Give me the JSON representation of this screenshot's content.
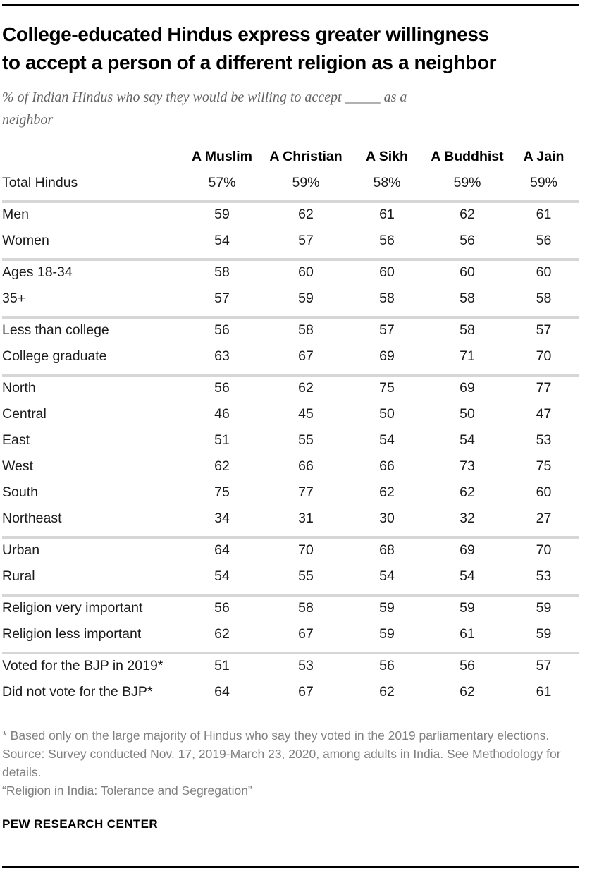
{
  "title_lines": [
    "College-educated Hindus express greater willingness",
    "to accept a person of a different religion as a neighbor"
  ],
  "subtitle_lines": [
    "% of Indian Hindus who say they would be willing to accept _____ as a",
    "neighbor"
  ],
  "table": {
    "columns": [
      "A Muslim",
      "A Christian",
      "A Sikh",
      "A Buddhist",
      "A Jain"
    ],
    "rows": [
      {
        "label": "Total Hindus",
        "values": [
          "57%",
          "59%",
          "58%",
          "59%",
          "59%"
        ],
        "divider_after": true
      },
      {
        "label": "Men",
        "values": [
          "59",
          "62",
          "61",
          "62",
          "61"
        ],
        "divider_after": false
      },
      {
        "label": "Women",
        "values": [
          "54",
          "57",
          "56",
          "56",
          "56"
        ],
        "divider_after": true
      },
      {
        "label": "Ages 18-34",
        "values": [
          "58",
          "60",
          "60",
          "60",
          "60"
        ],
        "divider_after": false
      },
      {
        "label": "35+",
        "values": [
          "57",
          "59",
          "58",
          "58",
          "58"
        ],
        "divider_after": true
      },
      {
        "label": "Less than college",
        "values": [
          "56",
          "58",
          "57",
          "58",
          "57"
        ],
        "divider_after": false
      },
      {
        "label": "College graduate",
        "values": [
          "63",
          "67",
          "69",
          "71",
          "70"
        ],
        "divider_after": true
      },
      {
        "label": "North",
        "values": [
          "56",
          "62",
          "75",
          "69",
          "77"
        ],
        "divider_after": false
      },
      {
        "label": "Central",
        "values": [
          "46",
          "45",
          "50",
          "50",
          "47"
        ],
        "divider_after": false
      },
      {
        "label": "East",
        "values": [
          "51",
          "55",
          "54",
          "54",
          "53"
        ],
        "divider_after": false
      },
      {
        "label": "West",
        "values": [
          "62",
          "66",
          "66",
          "73",
          "75"
        ],
        "divider_after": false
      },
      {
        "label": "South",
        "values": [
          "75",
          "77",
          "62",
          "62",
          "60"
        ],
        "divider_after": false
      },
      {
        "label": "Northeast",
        "values": [
          "34",
          "31",
          "30",
          "32",
          "27"
        ],
        "divider_after": true
      },
      {
        "label": "Urban",
        "values": [
          "64",
          "70",
          "68",
          "69",
          "70"
        ],
        "divider_after": false
      },
      {
        "label": "Rural",
        "values": [
          "54",
          "55",
          "54",
          "54",
          "53"
        ],
        "divider_after": true
      },
      {
        "label": "Religion very important",
        "values": [
          "56",
          "58",
          "59",
          "59",
          "59"
        ],
        "divider_after": false
      },
      {
        "label": "Religion less important",
        "values": [
          "62",
          "67",
          "59",
          "61",
          "59"
        ],
        "divider_after": true
      },
      {
        "label": "Voted for the BJP in 2019*",
        "values": [
          "51",
          "53",
          "56",
          "56",
          "57"
        ],
        "divider_after": false
      },
      {
        "label": "Did not vote for the BJP*",
        "values": [
          "64",
          "67",
          "62",
          "62",
          "61"
        ],
        "divider_after": false
      }
    ]
  },
  "footnotes": [
    "* Based only on the large majority of Hindus who say they voted in the 2019 parliamentary elections.",
    "Source: Survey conducted Nov. 17, 2019-March 23, 2020, among adults in India. See Methodology for details.",
    "“Religion in India: Tolerance and Segregation”"
  ],
  "footer": {
    "brand": "PEW RESEARCH CENTER"
  },
  "colors": {
    "rule": "#000000",
    "divider": "#d6d6d6",
    "subtitle_gray": "#636363",
    "footnote_gray": "#808080",
    "body_text": "#1a1a1a"
  },
  "chart_data": {
    "type": "table",
    "title": "College-educated Hindus express greater willingness to accept a person of a different religion as a neighbor",
    "subtitle": "% of Indian Hindus who say they would be willing to accept _____ as a neighbor",
    "columns": [
      "A Muslim",
      "A Christian",
      "A Sikh",
      "A Buddhist",
      "A Jain"
    ],
    "unit": "percent",
    "rows": [
      {
        "label": "Total Hindus",
        "values": [
          57,
          59,
          58,
          59,
          59
        ]
      },
      {
        "label": "Men",
        "values": [
          59,
          62,
          61,
          62,
          61
        ]
      },
      {
        "label": "Women",
        "values": [
          54,
          57,
          56,
          56,
          56
        ]
      },
      {
        "label": "Ages 18-34",
        "values": [
          58,
          60,
          60,
          60,
          60
        ]
      },
      {
        "label": "35+",
        "values": [
          57,
          59,
          58,
          58,
          58
        ]
      },
      {
        "label": "Less than college",
        "values": [
          56,
          58,
          57,
          58,
          57
        ]
      },
      {
        "label": "College graduate",
        "values": [
          63,
          67,
          69,
          71,
          70
        ]
      },
      {
        "label": "North",
        "values": [
          56,
          62,
          75,
          69,
          77
        ]
      },
      {
        "label": "Central",
        "values": [
          46,
          45,
          50,
          50,
          47
        ]
      },
      {
        "label": "East",
        "values": [
          51,
          55,
          54,
          54,
          53
        ]
      },
      {
        "label": "West",
        "values": [
          62,
          66,
          66,
          73,
          75
        ]
      },
      {
        "label": "South",
        "values": [
          75,
          77,
          62,
          62,
          60
        ]
      },
      {
        "label": "Northeast",
        "values": [
          34,
          31,
          30,
          32,
          27
        ]
      },
      {
        "label": "Urban",
        "values": [
          64,
          70,
          68,
          69,
          70
        ]
      },
      {
        "label": "Rural",
        "values": [
          54,
          55,
          54,
          54,
          53
        ]
      },
      {
        "label": "Religion very important",
        "values": [
          56,
          58,
          59,
          59,
          59
        ]
      },
      {
        "label": "Religion less important",
        "values": [
          62,
          67,
          59,
          61,
          59
        ]
      },
      {
        "label": "Voted for the BJP in 2019*",
        "values": [
          51,
          53,
          56,
          56,
          57
        ]
      },
      {
        "label": "Did not vote for the BJP*",
        "values": [
          64,
          67,
          62,
          62,
          61
        ]
      }
    ]
  }
}
